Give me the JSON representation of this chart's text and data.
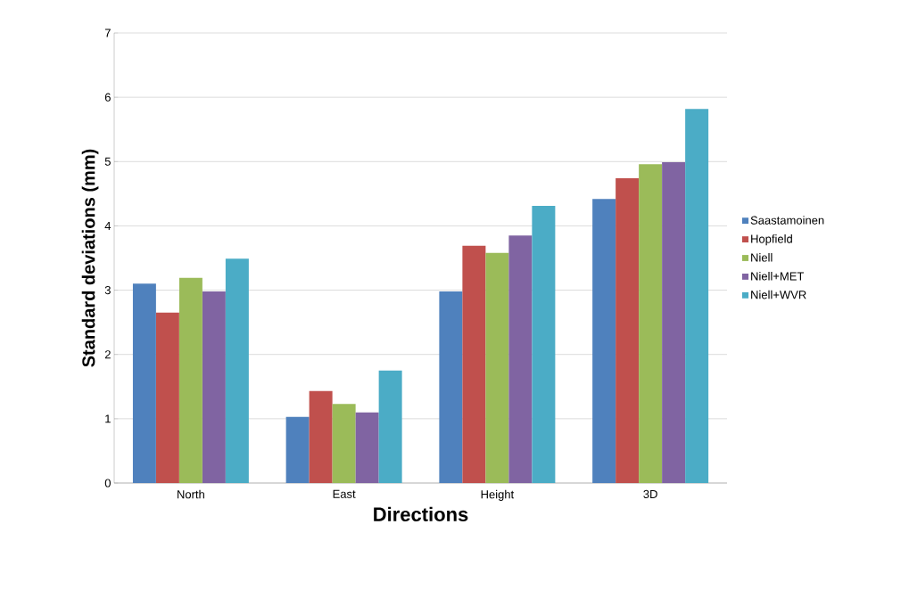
{
  "chart_data": {
    "type": "bar",
    "xlabel": "Directions",
    "ylabel": "Standard deviations (mm)",
    "categories": [
      "North",
      "East",
      "Height",
      "3D"
    ],
    "series": [
      {
        "name": "Saastamoinen",
        "color": "#4f81bd",
        "values": [
          3.1,
          1.03,
          2.98,
          4.42
        ]
      },
      {
        "name": "Hopfield",
        "color": "#c0504d",
        "values": [
          2.65,
          1.43,
          3.69,
          4.74
        ]
      },
      {
        "name": "Niell",
        "color": "#9bbb59",
        "values": [
          3.19,
          1.23,
          3.58,
          4.96
        ]
      },
      {
        "name": "Niell+MET",
        "color": "#8064a2",
        "values": [
          2.98,
          1.1,
          3.85,
          4.99
        ]
      },
      {
        "name": "Niell+WVR",
        "color": "#4bacc6",
        "values": [
          3.49,
          1.75,
          4.31,
          5.82
        ]
      }
    ],
    "ylim": [
      0,
      7
    ],
    "yticks": [
      0,
      1,
      2,
      3,
      4,
      5,
      6,
      7
    ],
    "grid": "y",
    "legend": "right"
  }
}
